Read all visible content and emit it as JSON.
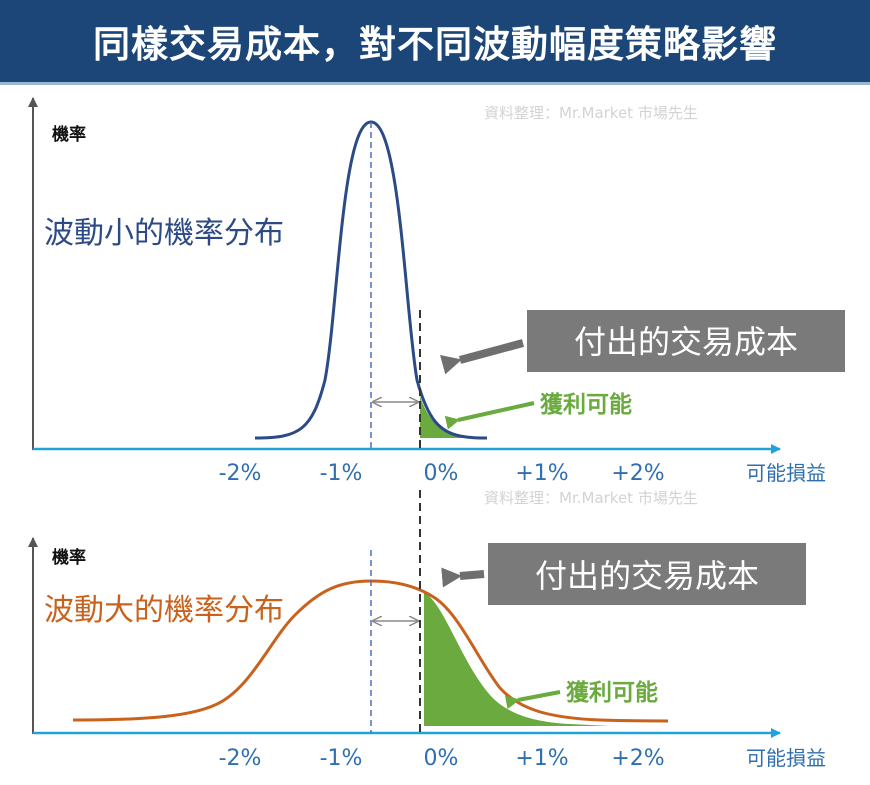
{
  "title": "同樣交易成本，對不同波動幅度策略影響",
  "source_note": "資料整理：Mr.Market 市場先生",
  "colors": {
    "title_bg": "#1c4677",
    "small_vol": "#2b4a86",
    "large_vol": "#c8621d",
    "profit_fill": "#6aaa3f",
    "axis": "#20a3d8",
    "tick_text": "#2f6fb0",
    "cost_box": "#7a7a7a",
    "arrow_gray": "#6f6f6f",
    "profit_text": "#6aaa3f"
  },
  "panels": [
    {
      "id": "small",
      "y_label": "機率",
      "curve_label": "波動小的機率分布",
      "cost_label": "付出的交易成本",
      "profit_label": "獲利可能",
      "x_axis_label": "可能損益",
      "ticks": [
        "-2%",
        "-1%",
        "0%",
        "+1%",
        "+2%"
      ]
    },
    {
      "id": "large",
      "y_label": "機率",
      "curve_label": "波動大的機率分布",
      "cost_label": "付出的交易成本",
      "profit_label": "獲利可能",
      "x_axis_label": "可能損益",
      "ticks": [
        "-2%",
        "-1%",
        "0%",
        "+1%",
        "+2%"
      ]
    }
  ]
}
